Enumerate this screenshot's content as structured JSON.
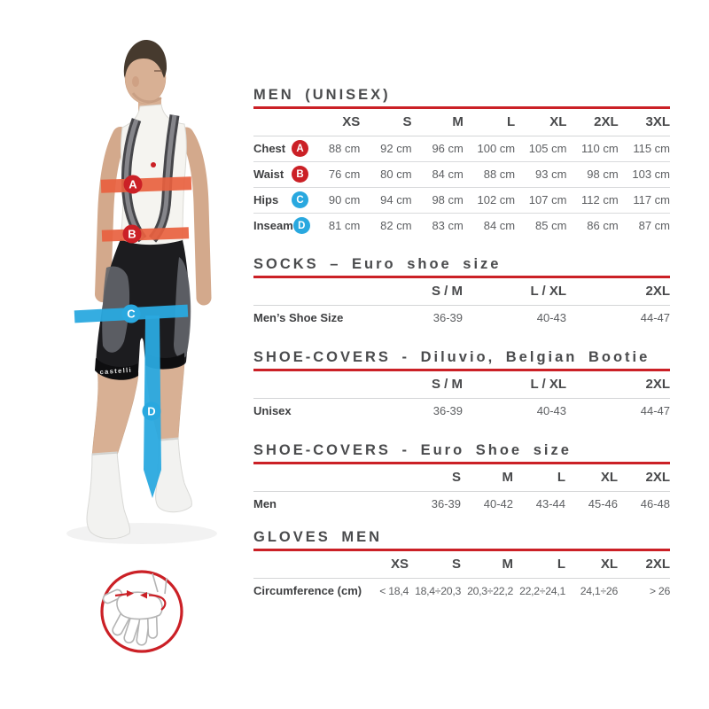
{
  "colors": {
    "accent_red": "#cb2026",
    "band_orange": "#e8613f",
    "accent_blue": "#29a8df",
    "title_text": "#4a4b4d",
    "label_text": "#3e3f41",
    "value_text": "#5d5f62",
    "divider": "#d6d7d9"
  },
  "figure": {
    "garment_text": "castelli",
    "markers": [
      {
        "letter": "A",
        "color": "#cb2026"
      },
      {
        "letter": "B",
        "color": "#cb2026"
      },
      {
        "letter": "C",
        "color": "#29a8df"
      },
      {
        "letter": "D",
        "color": "#29a8df"
      }
    ]
  },
  "tables": [
    {
      "id": "men-unisex",
      "title": "MEN (UNISEX)",
      "columns": [
        "XS",
        "S",
        "M",
        "L",
        "XL",
        "2XL",
        "3XL"
      ],
      "rows": [
        {
          "label": "Chest",
          "marker": "A",
          "marker_color": "red",
          "values": [
            "88 cm",
            "92 cm",
            "96 cm",
            "100 cm",
            "105 cm",
            "110 cm",
            "115 cm"
          ]
        },
        {
          "label": "Waist",
          "marker": "B",
          "marker_color": "red",
          "values": [
            "76 cm",
            "80 cm",
            "84 cm",
            "88 cm",
            "93 cm",
            "98 cm",
            "103 cm"
          ]
        },
        {
          "label": "Hips",
          "marker": "C",
          "marker_color": "blue",
          "values": [
            "90 cm",
            "94 cm",
            "98 cm",
            "102 cm",
            "107 cm",
            "112 cm",
            "117 cm"
          ]
        },
        {
          "label": "Inseam",
          "marker": "D",
          "marker_color": "blue",
          "values": [
            "81 cm",
            "82 cm",
            "83 cm",
            "84 cm",
            "85 cm",
            "86 cm",
            "87 cm"
          ]
        }
      ]
    },
    {
      "id": "socks",
      "title": "SOCKS – Euro shoe size",
      "columns": [
        "S / M",
        "L / XL",
        "2XL"
      ],
      "rows": [
        {
          "label": "Men’s Shoe Size",
          "values": [
            "36-39",
            "40-43",
            "44-47"
          ]
        }
      ]
    },
    {
      "id": "shoe-covers-diluvio",
      "title": "SHOE-COVERS - Diluvio, Belgian Bootie",
      "columns": [
        "S / M",
        "L / XL",
        "2XL"
      ],
      "rows": [
        {
          "label": "Unisex",
          "values": [
            "36-39",
            "40-43",
            "44-47"
          ]
        }
      ]
    },
    {
      "id": "shoe-covers-euro",
      "title": "SHOE-COVERS - Euro Shoe size",
      "columns": [
        "S",
        "M",
        "L",
        "XL",
        "2XL"
      ],
      "rows": [
        {
          "label": "Men",
          "values": [
            "36-39",
            "40-42",
            "43-44",
            "45-46",
            "46-48"
          ]
        }
      ]
    },
    {
      "id": "gloves-men",
      "title": "GLOVES MEN",
      "columns": [
        "XS",
        "S",
        "M",
        "L",
        "XL",
        "2XL"
      ],
      "rows": [
        {
          "label": "Circumference (cm)",
          "values": [
            "< 18,4",
            "18,4÷20,3",
            "20,3÷22,2",
            "22,2÷24,1",
            "24,1÷26",
            "> 26"
          ]
        }
      ]
    }
  ]
}
